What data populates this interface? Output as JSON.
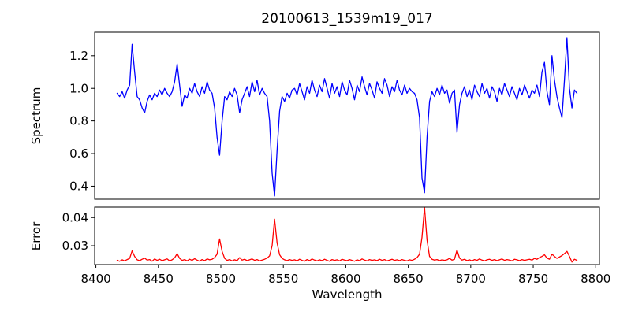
{
  "labels": {
    "title": "20100613_1539m19_017",
    "xlabel": "Wavelength",
    "spectrum_ylabel": "Spectrum",
    "error_ylabel": "Error"
  },
  "colors": {
    "spectrum_line": "#0000ff",
    "error_line": "#ff0000",
    "axis": "#000000",
    "background": "#ffffff"
  },
  "chart_data": [
    {
      "type": "line",
      "title": "20100613_1539m19_017",
      "ylabel": "Spectrum",
      "series_name": "spectrum",
      "color": "#0000ff",
      "grid": false,
      "legend": "none",
      "xlim": [
        8399,
        8803
      ],
      "ylim": [
        0.32,
        1.344
      ],
      "yticks": [
        0.4,
        0.6,
        0.8,
        1.0,
        1.2
      ],
      "ytick_labels": [
        "0.4",
        "0.6",
        "0.8",
        "1.0",
        "1.2"
      ],
      "x_start": 8417,
      "x_step": 2,
      "x_end": 8785,
      "values": [
        0.97,
        0.95,
        0.98,
        0.94,
        0.99,
        1.02,
        1.27,
        1.1,
        0.95,
        0.93,
        0.88,
        0.85,
        0.92,
        0.96,
        0.93,
        0.97,
        0.95,
        0.99,
        0.96,
        1.0,
        0.97,
        0.95,
        0.98,
        1.04,
        1.15,
        1.02,
        0.89,
        0.96,
        0.94,
        1.0,
        0.97,
        1.03,
        0.98,
        0.95,
        1.01,
        0.97,
        1.04,
        0.99,
        0.97,
        0.88,
        0.7,
        0.59,
        0.8,
        0.95,
        0.93,
        0.98,
        0.95,
        1.0,
        0.96,
        0.85,
        0.93,
        0.97,
        1.01,
        0.95,
        1.04,
        0.98,
        1.05,
        0.96,
        1.0,
        0.97,
        0.95,
        0.8,
        0.48,
        0.34,
        0.62,
        0.86,
        0.95,
        0.92,
        0.97,
        0.94,
        0.99,
        1.0,
        0.96,
        1.03,
        0.98,
        0.93,
        1.01,
        0.97,
        1.05,
        0.99,
        0.95,
        1.02,
        0.98,
        1.06,
        1.0,
        0.94,
        1.03,
        0.97,
        1.01,
        0.95,
        1.04,
        0.99,
        0.96,
        1.05,
        1.0,
        0.93,
        1.02,
        0.98,
        1.07,
        1.01,
        0.96,
        1.03,
        0.99,
        0.94,
        1.04,
        1.0,
        0.97,
        1.06,
        1.02,
        0.95,
        1.01,
        0.98,
        1.05,
        0.99,
        0.96,
        1.02,
        0.97,
        1.0,
        0.98,
        0.97,
        0.93,
        0.82,
        0.45,
        0.36,
        0.7,
        0.92,
        0.98,
        0.95,
        1.0,
        0.96,
        1.02,
        0.97,
        0.99,
        0.91,
        0.97,
        0.99,
        0.73,
        0.9,
        0.97,
        1.01,
        0.95,
        0.99,
        0.93,
        1.02,
        0.98,
        0.95,
        1.03,
        0.97,
        1.0,
        0.94,
        1.01,
        0.98,
        0.92,
        1.0,
        0.96,
        1.03,
        0.99,
        0.95,
        1.01,
        0.97,
        0.93,
        1.0,
        0.96,
        1.02,
        0.98,
        0.94,
        0.99,
        0.97,
        1.02,
        0.95,
        1.1,
        1.16,
        0.98,
        0.9,
        1.2,
        1.05,
        0.95,
        0.88,
        0.82,
        1.05,
        1.31,
        1.0,
        0.88,
        0.99,
        0.97
      ]
    },
    {
      "type": "line",
      "ylabel": "Error",
      "xlabel": "Wavelength",
      "series_name": "error",
      "color": "#ff0000",
      "grid": false,
      "legend": "none",
      "xlim": [
        8399,
        8803
      ],
      "ylim": [
        0.0233,
        0.0437
      ],
      "yticks": [
        0.03,
        0.04
      ],
      "ytick_labels": [
        "0.03",
        "0.04"
      ],
      "xticks": [
        8400,
        8450,
        8500,
        8550,
        8600,
        8650,
        8700,
        8750,
        8800
      ],
      "xtick_labels": [
        "8400",
        "8450",
        "8500",
        "8550",
        "8600",
        "8650",
        "8700",
        "8750",
        "8800"
      ],
      "x_start": 8417,
      "x_step": 2,
      "x_end": 8785,
      "values": [
        0.0248,
        0.0245,
        0.025,
        0.0246,
        0.0251,
        0.0255,
        0.0282,
        0.0262,
        0.025,
        0.0247,
        0.0252,
        0.0256,
        0.0249,
        0.0251,
        0.0245,
        0.0253,
        0.0248,
        0.0252,
        0.0247,
        0.025,
        0.0253,
        0.0246,
        0.025,
        0.0257,
        0.0272,
        0.0255,
        0.0248,
        0.0251,
        0.0246,
        0.0252,
        0.0248,
        0.0254,
        0.0249,
        0.0245,
        0.0251,
        0.0247,
        0.0253,
        0.025,
        0.0252,
        0.0258,
        0.027,
        0.0324,
        0.028,
        0.0255,
        0.0248,
        0.0251,
        0.0246,
        0.025,
        0.0247,
        0.0258,
        0.0249,
        0.0252,
        0.0247,
        0.025,
        0.0253,
        0.0248,
        0.0251,
        0.0246,
        0.0249,
        0.0252,
        0.0256,
        0.0264,
        0.03,
        0.0394,
        0.031,
        0.0268,
        0.0255,
        0.025,
        0.0247,
        0.0251,
        0.0248,
        0.025,
        0.0246,
        0.0252,
        0.0248,
        0.0245,
        0.0251,
        0.0247,
        0.0253,
        0.0249,
        0.0246,
        0.025,
        0.0247,
        0.0252,
        0.0248,
        0.0245,
        0.0251,
        0.0248,
        0.025,
        0.0246,
        0.0252,
        0.0249,
        0.0247,
        0.0251,
        0.0248,
        0.0245,
        0.025,
        0.0247,
        0.0253,
        0.0249,
        0.0246,
        0.0251,
        0.0248,
        0.025,
        0.0247,
        0.0252,
        0.0248,
        0.0251,
        0.0246,
        0.0249,
        0.0252,
        0.0248,
        0.025,
        0.0247,
        0.0251,
        0.0248,
        0.0246,
        0.025,
        0.0248,
        0.0252,
        0.0258,
        0.027,
        0.033,
        0.0436,
        0.032,
        0.0262,
        0.0252,
        0.0249,
        0.0251,
        0.0247,
        0.025,
        0.0248,
        0.025,
        0.0255,
        0.0249,
        0.0252,
        0.0285,
        0.0256,
        0.0249,
        0.0252,
        0.0247,
        0.025,
        0.0246,
        0.0251,
        0.0248,
        0.0253,
        0.0249,
        0.0246,
        0.025,
        0.0252,
        0.0248,
        0.0251,
        0.0247,
        0.025,
        0.0253,
        0.0248,
        0.0251,
        0.0249,
        0.0246,
        0.0252,
        0.025,
        0.0247,
        0.0251,
        0.0248,
        0.025,
        0.0252,
        0.0249,
        0.0255,
        0.0252,
        0.0258,
        0.0262,
        0.0268,
        0.0256,
        0.0252,
        0.027,
        0.0262,
        0.0255,
        0.026,
        0.0265,
        0.0272,
        0.028,
        0.0262,
        0.0242,
        0.0252,
        0.0248
      ]
    }
  ]
}
